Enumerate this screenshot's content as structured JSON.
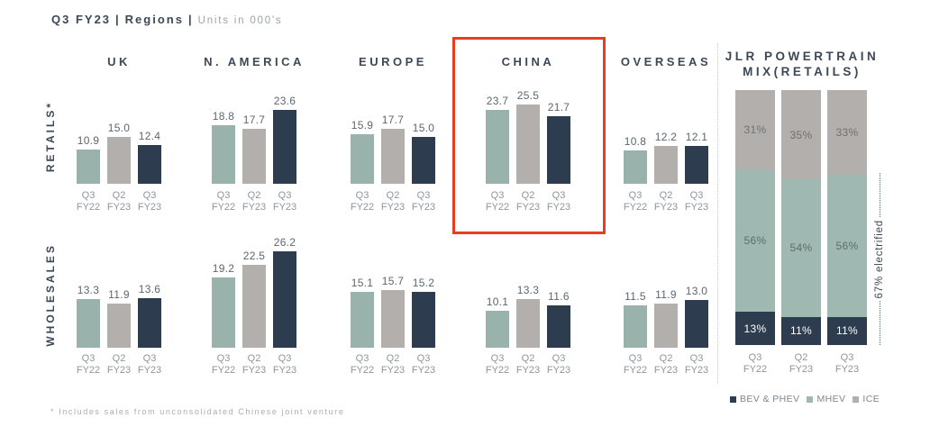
{
  "title": {
    "part1": "Q3 FY23",
    "part2": "Regions",
    "part3": "Units in 000's",
    "separator": "|"
  },
  "footnote": "* Includes sales from unconsolidated Chinese joint venture",
  "colors": {
    "bar_q3fy22": "#99B2AB",
    "bar_q2fy23": "#B3AFAD",
    "bar_q3fy23": "#2E3C50",
    "heading_text": "#3C4856",
    "value_text": "#5C6670",
    "tick_text": "#8E969C",
    "muted_text": "#A9ADB1",
    "highlight_red": "#E93D20"
  },
  "chart_data": [
    {
      "type": "bar",
      "title": "Q3 FY23 | Regions | Units in 000's",
      "categories": [
        "Q3 FY22",
        "Q2 FY23",
        "Q3 FY23"
      ],
      "category_colors": [
        "#99B2AB",
        "#B3AFAD",
        "#2E3C50"
      ],
      "groups": [
        "UK",
        "N. AMERICA",
        "EUROPE",
        "CHINA",
        "OVERSEAS"
      ],
      "rows": [
        {
          "label": "RETAILS*",
          "values": [
            [
              10.9,
              15.0,
              12.4
            ],
            [
              18.8,
              17.7,
              23.6
            ],
            [
              15.9,
              17.7,
              15.0
            ],
            [
              23.7,
              25.5,
              21.7
            ],
            [
              10.8,
              12.2,
              12.1
            ]
          ]
        },
        {
          "label": "WHOLESALES",
          "values": [
            [
              13.3,
              11.9,
              13.6
            ],
            [
              19.2,
              22.5,
              26.2
            ],
            [
              15.1,
              15.7,
              15.2
            ],
            [
              10.1,
              13.3,
              11.6
            ],
            [
              11.5,
              11.9,
              13.0
            ]
          ]
        }
      ],
      "highlighted_group": "CHINA",
      "ylabel": "Units in 000's",
      "grid": false
    },
    {
      "type": "stacked-bar",
      "title": "JLR POWERTRAIN MIX(RETAILS)",
      "title_lines": [
        "JLR POWERTRAIN",
        "MIX(RETAILS)"
      ],
      "categories": [
        "Q3 FY22",
        "Q2 FY23",
        "Q3 FY23"
      ],
      "unit": "%",
      "ylim": [
        0,
        100
      ],
      "series": [
        {
          "name": "BEV & PHEV",
          "values": [
            13,
            11,
            11
          ],
          "color": "#2E3C50",
          "label_color": "#FFFFFF"
        },
        {
          "name": "MHEV",
          "values": [
            56,
            54,
            56
          ],
          "color": "#9FB8B1",
          "label_color": "#5E6C70"
        },
        {
          "name": "ICE",
          "values": [
            31,
            35,
            33
          ],
          "color": "#B3AFAD",
          "label_color": "#6E7173"
        }
      ],
      "annotation": "67% electrified",
      "legend_position": "bottom"
    }
  ]
}
